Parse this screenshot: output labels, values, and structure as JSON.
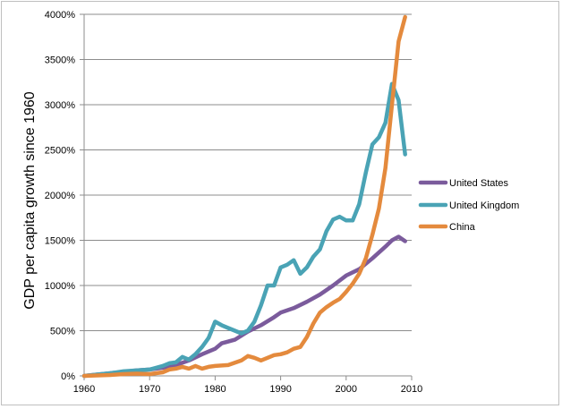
{
  "chart_data": {
    "type": "line",
    "title": "",
    "xlabel": "",
    "ylabel": "GDP per capita growth since 1960",
    "xlim": [
      1960,
      2010
    ],
    "ylim": [
      0,
      4000
    ],
    "x_ticks": [
      1960,
      1970,
      1980,
      1990,
      2000,
      2010
    ],
    "y_ticks": [
      0,
      500,
      1000,
      1500,
      2000,
      2500,
      3000,
      3500,
      4000
    ],
    "y_tick_labels": [
      "0%",
      "500%",
      "1000%",
      "1500%",
      "2000%",
      "2500%",
      "3000%",
      "3500%",
      "4000%"
    ],
    "grid": "horizontal",
    "legend_position": "right",
    "series": [
      {
        "name": "United States",
        "color": "#7b5b9c",
        "points": [
          [
            1960,
            0
          ],
          [
            1962,
            15
          ],
          [
            1964,
            30
          ],
          [
            1966,
            45
          ],
          [
            1968,
            60
          ],
          [
            1970,
            70
          ],
          [
            1972,
            90
          ],
          [
            1974,
            120
          ],
          [
            1976,
            170
          ],
          [
            1978,
            240
          ],
          [
            1980,
            300
          ],
          [
            1981,
            360
          ],
          [
            1983,
            400
          ],
          [
            1985,
            490
          ],
          [
            1987,
            560
          ],
          [
            1989,
            650
          ],
          [
            1990,
            700
          ],
          [
            1992,
            750
          ],
          [
            1994,
            820
          ],
          [
            1996,
            900
          ],
          [
            1998,
            1000
          ],
          [
            2000,
            1110
          ],
          [
            2002,
            1180
          ],
          [
            2004,
            1300
          ],
          [
            2006,
            1430
          ],
          [
            2007,
            1500
          ],
          [
            2008,
            1540
          ],
          [
            2009,
            1490
          ]
        ]
      },
      {
        "name": "United Kingdom",
        "color": "#4aa3b5",
        "points": [
          [
            1960,
            0
          ],
          [
            1962,
            15
          ],
          [
            1964,
            30
          ],
          [
            1966,
            50
          ],
          [
            1968,
            60
          ],
          [
            1970,
            70
          ],
          [
            1972,
            110
          ],
          [
            1973,
            140
          ],
          [
            1974,
            150
          ],
          [
            1975,
            210
          ],
          [
            1976,
            180
          ],
          [
            1977,
            240
          ],
          [
            1978,
            320
          ],
          [
            1979,
            420
          ],
          [
            1980,
            600
          ],
          [
            1981,
            560
          ],
          [
            1982,
            530
          ],
          [
            1983,
            500
          ],
          [
            1984,
            470
          ],
          [
            1985,
            500
          ],
          [
            1986,
            600
          ],
          [
            1987,
            780
          ],
          [
            1988,
            1000
          ],
          [
            1989,
            1000
          ],
          [
            1990,
            1200
          ],
          [
            1991,
            1230
          ],
          [
            1992,
            1280
          ],
          [
            1993,
            1130
          ],
          [
            1994,
            1200
          ],
          [
            1995,
            1320
          ],
          [
            1996,
            1400
          ],
          [
            1997,
            1600
          ],
          [
            1998,
            1730
          ],
          [
            1999,
            1760
          ],
          [
            2000,
            1720
          ],
          [
            2001,
            1720
          ],
          [
            2002,
            1900
          ],
          [
            2003,
            2250
          ],
          [
            2004,
            2560
          ],
          [
            2005,
            2640
          ],
          [
            2006,
            2800
          ],
          [
            2007,
            3230
          ],
          [
            2008,
            3050
          ],
          [
            2009,
            2450
          ]
        ]
      },
      {
        "name": "China",
        "color": "#e48a3d",
        "points": [
          [
            1960,
            0
          ],
          [
            1962,
            5
          ],
          [
            1964,
            10
          ],
          [
            1966,
            20
          ],
          [
            1968,
            25
          ],
          [
            1970,
            20
          ],
          [
            1972,
            40
          ],
          [
            1973,
            70
          ],
          [
            1974,
            80
          ],
          [
            1975,
            100
          ],
          [
            1976,
            80
          ],
          [
            1977,
            110
          ],
          [
            1978,
            80
          ],
          [
            1979,
            100
          ],
          [
            1980,
            110
          ],
          [
            1982,
            120
          ],
          [
            1984,
            170
          ],
          [
            1985,
            220
          ],
          [
            1986,
            200
          ],
          [
            1987,
            170
          ],
          [
            1988,
            200
          ],
          [
            1989,
            230
          ],
          [
            1990,
            240
          ],
          [
            1991,
            260
          ],
          [
            1992,
            300
          ],
          [
            1993,
            320
          ],
          [
            1994,
            430
          ],
          [
            1995,
            580
          ],
          [
            1996,
            700
          ],
          [
            1997,
            760
          ],
          [
            1998,
            810
          ],
          [
            1999,
            850
          ],
          [
            2000,
            930
          ],
          [
            2001,
            1020
          ],
          [
            2002,
            1130
          ],
          [
            2003,
            1300
          ],
          [
            2004,
            1560
          ],
          [
            2005,
            1850
          ],
          [
            2006,
            2300
          ],
          [
            2007,
            3000
          ],
          [
            2008,
            3700
          ],
          [
            2009,
            3970
          ]
        ]
      }
    ]
  }
}
